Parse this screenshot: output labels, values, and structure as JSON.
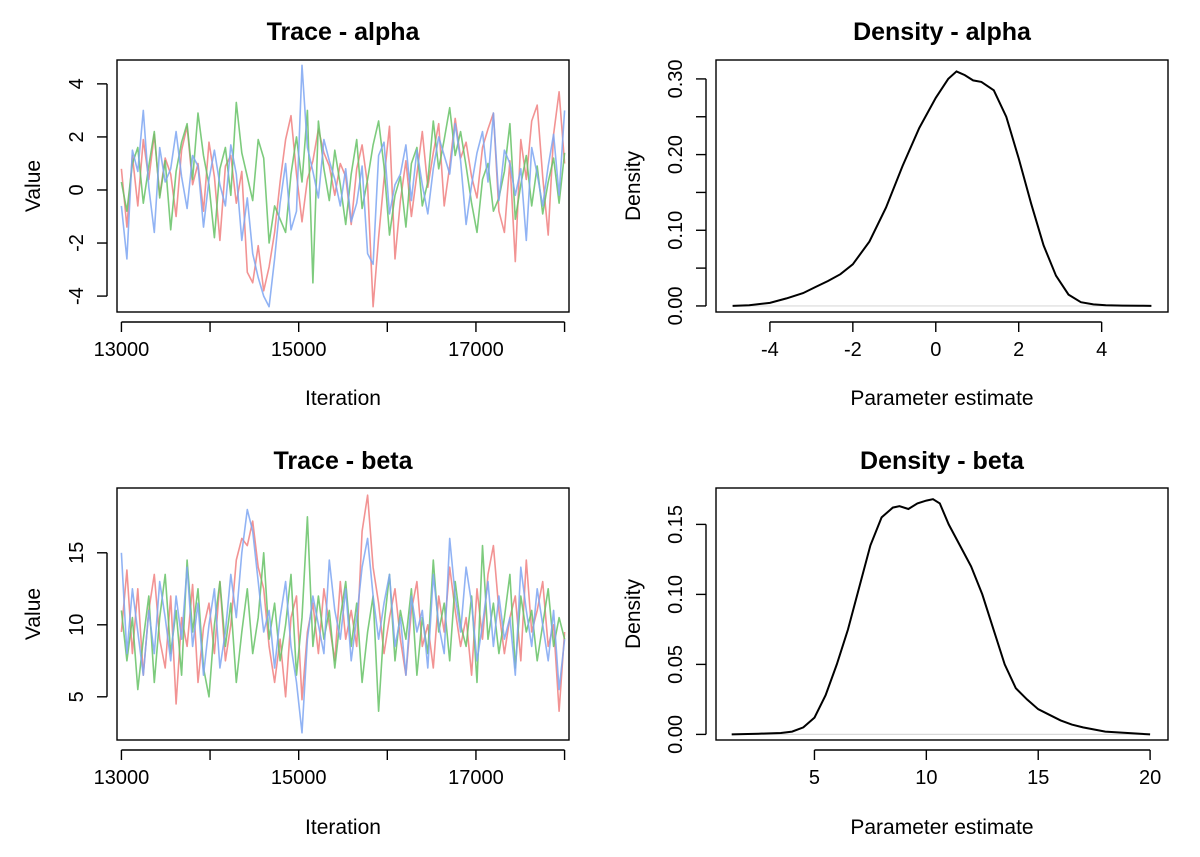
{
  "chart_data": [
    {
      "id": "trace_alpha",
      "type": "line",
      "title": "Trace - alpha",
      "xlabel": "Iteration",
      "ylabel": "Value",
      "xlim": [
        12950,
        18050
      ],
      "ylim": [
        -4.6,
        4.9
      ],
      "xticks": [
        13000,
        15000,
        17000
      ],
      "xticks_minor": [
        14000,
        16000,
        18000
      ],
      "yticks": [
        -4,
        -2,
        0,
        2,
        4
      ],
      "grid": false,
      "series_colors": [
        "#f08080",
        "#66c266",
        "#7ea6f2"
      ],
      "series": [
        {
          "values": [
            0.8,
            -1.4,
            1.3,
            -0.6,
            1.9,
            0.4,
            2.1,
            -0.2,
            1.2,
            0.6,
            -1.0,
            1.5,
            2.4,
            0.2,
            1.0,
            -0.8,
            1.8,
            0.5,
            -1.9,
            0.9,
            1.3,
            -0.5,
            0.7,
            -3.1,
            -3.5,
            -2.1,
            -3.8,
            -2.9,
            -1.6,
            0.3,
            1.9,
            2.8,
            0.6,
            -1.2,
            0.4,
            1.1,
            2.3,
            1.4,
            0.9,
            -0.2,
            1.0,
            0.5,
            -1.3,
            0.8,
            1.7,
            0.2,
            -4.4,
            -1.8,
            0.4,
            2.4,
            -2.6,
            -0.4,
            1.1,
            -1.0,
            0.6,
            2.2,
            0.1,
            1.4,
            2.5,
            -0.6,
            0.9,
            2.7,
            1.2,
            1.8,
            0.5,
            -0.3,
            1.6,
            2.3,
            2.9,
            -0.8,
            -1.6,
            1.1,
            -2.7,
            1.9,
            0.4,
            2.6,
            3.2,
            0.5,
            -1.7,
            2.1,
            3.7,
            1.0
          ]
        },
        {
          "values": [
            0.3,
            -0.8,
            1.0,
            1.6,
            -0.5,
            0.9,
            2.2,
            -0.3,
            1.1,
            -1.5,
            0.7,
            1.8,
            2.5,
            0.4,
            2.9,
            1.3,
            0.2,
            -1.8,
            0.8,
            1.6,
            -0.2,
            3.3,
            1.4,
            0.5,
            -0.4,
            1.9,
            1.2,
            -2.0,
            -0.6,
            -1.1,
            -1.6,
            0.6,
            2.0,
            0.3,
            3.0,
            -3.5,
            2.6,
            0.8,
            -0.4,
            1.5,
            0.2,
            -1.3,
            0.6,
            1.9,
            -0.7,
            0.4,
            1.7,
            2.6,
            0.9,
            -1.7,
            -0.2,
            0.5,
            -1.4,
            1.0,
            1.6,
            -0.6,
            0.3,
            2.6,
            0.8,
            1.9,
            3.1,
            1.3,
            2.2,
            0.9,
            -0.5,
            -1.6,
            0.4,
            1.0,
            -0.8,
            -0.3,
            0.7,
            2.5,
            -1.1,
            0.2,
            1.3,
            -0.6,
            0.9,
            -0.9,
            0.3,
            1.2,
            -0.5,
            1.4
          ]
        },
        {
          "values": [
            -0.6,
            -2.6,
            1.5,
            0.7,
            3.0,
            0.1,
            -1.6,
            1.6,
            0.3,
            0.8,
            2.2,
            0.5,
            -0.7,
            1.3,
            0.9,
            -1.4,
            0.4,
            1.5,
            0.2,
            -0.6,
            1.7,
            0.6,
            -1.9,
            -0.3,
            -2.4,
            -3.3,
            -4.0,
            -4.4,
            -2.6,
            -0.5,
            1.0,
            -1.5,
            -0.8,
            4.7,
            1.6,
            0.7,
            -0.3,
            1.9,
            1.1,
            0.4,
            -0.6,
            0.8,
            -1.2,
            -0.5,
            0.9,
            -2.4,
            -2.8,
            1.3,
            1.8,
            -0.9,
            0.2,
            0.6,
            1.7,
            -0.4,
            1.5,
            0.2,
            -0.9,
            0.8,
            2.0,
            1.3,
            0.6,
            2.5,
            1.1,
            -1.3,
            0.2,
            1.4,
            2.2,
            0.3,
            2.9,
            -0.4,
            1.5,
            1.0,
            -0.2,
            0.8,
            -1.9,
            1.6,
            0.6,
            -0.6,
            0.9,
            2.1,
            -0.2,
            3.0
          ]
        }
      ]
    },
    {
      "id": "density_alpha",
      "type": "line",
      "title": "Density - alpha",
      "xlabel": "Parameter estimate",
      "ylabel": "Density",
      "xlim": [
        -5.3,
        5.6
      ],
      "ylim": [
        -0.008,
        0.325
      ],
      "xticks": [
        -4,
        -2,
        0,
        2,
        4
      ],
      "yticks": [
        0.0,
        0.1,
        0.2,
        0.3
      ],
      "ytick_labels": [
        "0.00",
        "0.10",
        "0.20",
        "0.30"
      ],
      "yticks_minor": [
        0.05,
        0.15,
        0.25
      ],
      "grid": false,
      "x": [
        -4.9,
        -4.5,
        -4.0,
        -3.6,
        -3.2,
        -2.9,
        -2.6,
        -2.3,
        -2.0,
        -1.6,
        -1.2,
        -0.8,
        -0.4,
        0.0,
        0.3,
        0.5,
        0.7,
        0.9,
        1.1,
        1.4,
        1.7,
        2.0,
        2.3,
        2.6,
        2.9,
        3.2,
        3.5,
        3.8,
        4.1,
        4.5,
        4.9,
        5.2
      ],
      "y": [
        0.0,
        0.001,
        0.004,
        0.01,
        0.017,
        0.025,
        0.033,
        0.042,
        0.055,
        0.085,
        0.13,
        0.185,
        0.235,
        0.275,
        0.3,
        0.31,
        0.305,
        0.298,
        0.296,
        0.285,
        0.25,
        0.195,
        0.135,
        0.08,
        0.04,
        0.015,
        0.005,
        0.002,
        0.001,
        0.0005,
        0.0003,
        0.0
      ]
    },
    {
      "id": "trace_beta",
      "type": "line",
      "title": "Trace - beta",
      "xlabel": "Iteration",
      "ylabel": "Value",
      "xlim": [
        12950,
        18050
      ],
      "ylim": [
        2.0,
        19.5
      ],
      "xticks": [
        13000,
        15000,
        17000
      ],
      "xticks_minor": [
        14000,
        16000,
        18000
      ],
      "yticks": [
        5,
        10,
        15
      ],
      "grid": false,
      "series_colors": [
        "#f08080",
        "#66c266",
        "#7ea6f2"
      ],
      "series": [
        {
          "values": [
            9.5,
            13.8,
            8.0,
            12.5,
            6.5,
            11.0,
            13.5,
            9.0,
            7.0,
            12.0,
            4.5,
            10.5,
            8.5,
            12.8,
            6.0,
            9.8,
            11.5,
            8.0,
            13.0,
            7.5,
            10.0,
            14.5,
            16.0,
            15.5,
            17.2,
            14.0,
            12.5,
            8.5,
            6.0,
            9.0,
            5.0,
            10.5,
            12.0,
            4.8,
            9.5,
            11.5,
            8.0,
            12.5,
            10.0,
            7.5,
            13.0,
            9.0,
            11.0,
            8.5,
            16.5,
            19.0,
            14.0,
            11.5,
            8.0,
            10.5,
            12.5,
            9.0,
            6.5,
            11.0,
            13.0,
            8.5,
            10.0,
            7.0,
            12.0,
            9.5,
            14.0,
            11.0,
            8.5,
            10.5,
            6.5,
            12.5,
            9.0,
            13.5,
            15.5,
            11.0,
            8.0,
            10.5,
            12.0,
            7.5,
            14.5,
            9.5,
            11.0,
            13.0,
            8.5,
            10.0,
            4.0,
            9.5
          ]
        },
        {
          "values": [
            11.0,
            7.5,
            10.5,
            5.5,
            9.0,
            12.0,
            6.0,
            10.5,
            13.5,
            8.0,
            11.0,
            6.5,
            14.5,
            9.5,
            12.5,
            7.0,
            5.0,
            10.0,
            13.0,
            8.5,
            11.5,
            6.0,
            9.5,
            12.5,
            8.0,
            10.5,
            15.0,
            9.0,
            11.5,
            7.5,
            10.0,
            13.5,
            6.5,
            10.5,
            17.5,
            8.5,
            12.0,
            9.0,
            11.0,
            7.0,
            10.5,
            13.0,
            8.5,
            11.5,
            6.0,
            9.5,
            12.0,
            4.0,
            10.0,
            13.5,
            7.5,
            11.0,
            9.0,
            12.5,
            6.5,
            10.5,
            8.0,
            14.5,
            9.5,
            11.5,
            7.5,
            13.0,
            10.0,
            8.5,
            12.0,
            6.0,
            15.5,
            9.0,
            11.5,
            8.0,
            10.5,
            13.5,
            7.0,
            12.0,
            9.5,
            11.0,
            7.5,
            10.0,
            12.5,
            8.5,
            10.5,
            9.0
          ]
        },
        {
          "values": [
            15.0,
            8.0,
            12.5,
            9.5,
            6.5,
            11.0,
            8.0,
            13.0,
            10.5,
            7.5,
            12.0,
            9.0,
            14.0,
            8.5,
            11.5,
            6.5,
            10.0,
            12.5,
            7.0,
            9.5,
            13.5,
            10.5,
            15.0,
            18.0,
            16.5,
            13.0,
            9.5,
            11.0,
            7.0,
            10.5,
            13.0,
            8.5,
            6.0,
            2.5,
            9.0,
            12.0,
            10.0,
            8.0,
            14.5,
            11.0,
            9.0,
            12.5,
            7.5,
            10.5,
            14.0,
            16.0,
            12.0,
            9.0,
            11.5,
            13.5,
            8.5,
            10.5,
            6.5,
            12.0,
            9.5,
            11.0,
            7.0,
            13.5,
            10.0,
            8.0,
            16.0,
            12.0,
            9.5,
            14.0,
            11.5,
            7.5,
            10.0,
            13.0,
            8.5,
            12.0,
            9.0,
            10.5,
            6.5,
            14.0,
            11.0,
            8.5,
            12.5,
            10.0,
            7.5,
            11.0,
            5.5,
            9.0
          ]
        }
      ]
    },
    {
      "id": "density_beta",
      "type": "line",
      "title": "Density - beta",
      "xlabel": "Parameter estimate",
      "ylabel": "Density",
      "xlim": [
        0.6,
        20.8
      ],
      "ylim": [
        -0.004,
        0.176
      ],
      "xticks": [
        5,
        10,
        15,
        20
      ],
      "yticks": [
        0.0,
        0.05,
        0.1,
        0.15
      ],
      "ytick_labels": [
        "0.00",
        "0.05",
        "0.10",
        "0.15"
      ],
      "grid": false,
      "x": [
        1.3,
        2.5,
        3.5,
        4.0,
        4.5,
        5.0,
        5.5,
        6.0,
        6.5,
        7.0,
        7.5,
        8.0,
        8.5,
        8.8,
        9.2,
        9.6,
        10.0,
        10.3,
        10.6,
        11.0,
        11.5,
        12.0,
        12.5,
        13.0,
        13.5,
        14.0,
        14.5,
        15.0,
        15.5,
        16.0,
        16.5,
        17.0,
        18.0,
        19.0,
        20.0
      ],
      "y": [
        0.0,
        0.0005,
        0.001,
        0.002,
        0.005,
        0.012,
        0.028,
        0.05,
        0.075,
        0.105,
        0.135,
        0.155,
        0.162,
        0.163,
        0.161,
        0.165,
        0.167,
        0.168,
        0.165,
        0.15,
        0.135,
        0.12,
        0.1,
        0.075,
        0.05,
        0.033,
        0.025,
        0.018,
        0.014,
        0.01,
        0.007,
        0.005,
        0.002,
        0.001,
        0.0
      ]
    }
  ]
}
